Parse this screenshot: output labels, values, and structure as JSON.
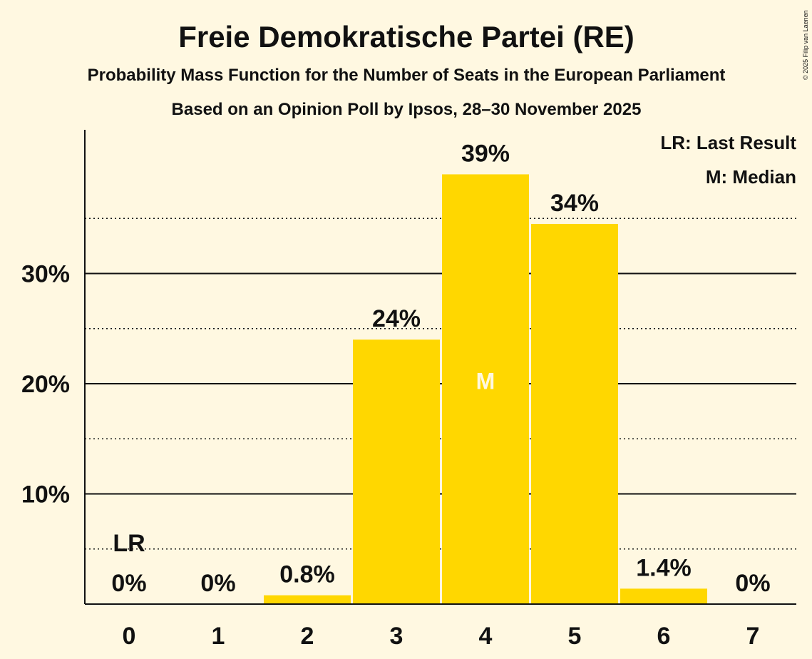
{
  "chart_data": {
    "type": "bar",
    "title": "Freie Demokratische Partei (RE)",
    "subtitle": "Probability Mass Function for the Number of Seats in the European Parliament",
    "source": "Based on an Opinion Poll by Ipsos, 28–30 November 2025",
    "copyright": "© 2025 Filip van Laenen",
    "categories": [
      "0",
      "1",
      "2",
      "3",
      "4",
      "5",
      "6",
      "7"
    ],
    "values": [
      0,
      0,
      0.8,
      24,
      39,
      34.5,
      1.4,
      0
    ],
    "value_labels": [
      "0%",
      "0%",
      "0.8%",
      "24%",
      "39%",
      "34%",
      "1.4%",
      "0%"
    ],
    "ylim": [
      0,
      43
    ],
    "y_ticks": [
      {
        "value": 10,
        "label": "10%"
      },
      {
        "value": 20,
        "label": "20%"
      },
      {
        "value": 30,
        "label": "30%"
      }
    ],
    "y_minor_gridlines": [
      5,
      15,
      25,
      35
    ],
    "last_result": {
      "category": "0",
      "label": "LR"
    },
    "median": {
      "category": "4",
      "label": "M"
    },
    "legend": [
      "LR: Last Result",
      "M: Median"
    ],
    "colors": {
      "bar": "#ffd700",
      "background": "#fff8e1",
      "text": "#111111"
    }
  }
}
